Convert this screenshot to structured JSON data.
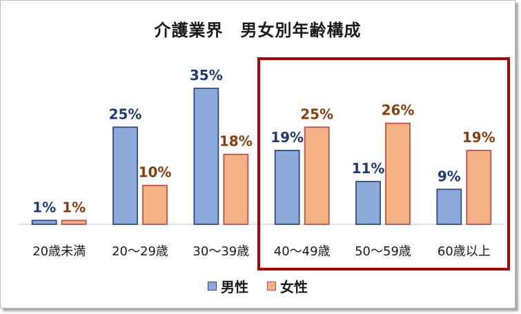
{
  "chart_data": {
    "type": "bar",
    "title": "介護業界　男女別年齢構成",
    "categories": [
      "20歳未満",
      "20～29歳",
      "30～39歳",
      "40～49歳",
      "50～59歳",
      "60歳以上"
    ],
    "series": [
      {
        "name": "男性",
        "values": [
          1,
          25,
          35,
          19,
          11,
          9
        ],
        "labels": [
          "1%",
          "25%",
          "35%",
          "19%",
          "11%",
          "9%"
        ],
        "color": "#8eaadb",
        "border": "#2f4a8a",
        "label_color": "#1f3a7a"
      },
      {
        "name": "女性",
        "values": [
          1,
          10,
          18,
          25,
          26,
          19
        ],
        "labels": [
          "1%",
          "10%",
          "18%",
          "25%",
          "26%",
          "19%"
        ],
        "color": "#f4b183",
        "border": "#c0504d",
        "label_color": "#8b3e0b"
      }
    ],
    "ylim": [
      0,
      35
    ],
    "legend_position": "bottom",
    "grid": false,
    "highlight": {
      "categories": [
        "40～49歳",
        "50～59歳",
        "60歳以上"
      ],
      "color": "#b00000"
    }
  }
}
